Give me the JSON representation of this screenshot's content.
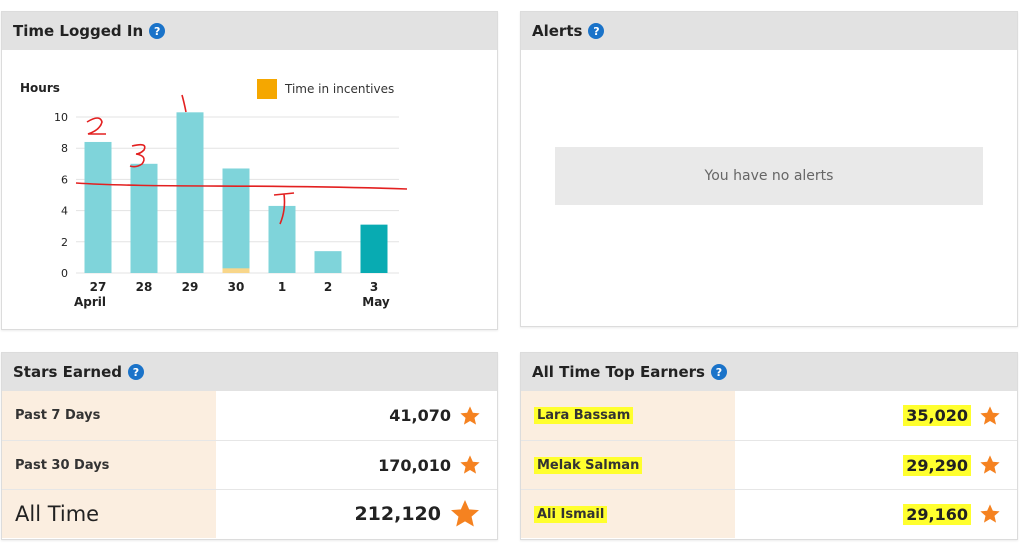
{
  "time_panel": {
    "title": "Time Logged In",
    "help": "?"
  },
  "alerts_panel": {
    "title": "Alerts",
    "help": "?",
    "empty_message": "You have no alerts"
  },
  "stars_panel": {
    "title": "Stars Earned",
    "help": "?",
    "rows": [
      {
        "label": "Past 7 Days",
        "value": "41,070"
      },
      {
        "label": "Past 30 Days",
        "value": "170,010"
      },
      {
        "label": "All Time",
        "value": "212,120"
      }
    ]
  },
  "top_panel": {
    "title": "All Time Top Earners",
    "help": "?",
    "rows": [
      {
        "label": "Lara Bassam",
        "value": "35,020"
      },
      {
        "label": "Melak Salman",
        "value": "29,290"
      },
      {
        "label": "Ali Ismail",
        "value": "29,160"
      }
    ]
  },
  "chart_data": {
    "type": "bar",
    "ylabel": "Hours",
    "legend": [
      {
        "name": "Time in incentives",
        "color": "#f5a700"
      }
    ],
    "legend_position": "top-right",
    "categories": [
      "27",
      "28",
      "29",
      "30",
      "1",
      "2",
      "3"
    ],
    "sub_labels": [
      "April",
      "",
      "",
      "",
      "",
      "",
      "May"
    ],
    "yticks": [
      0,
      2,
      4,
      6,
      8,
      10
    ],
    "ylim": [
      0,
      10.5
    ],
    "series": [
      {
        "values": [
          8.4,
          7.0,
          10.3,
          6.7,
          4.3,
          1.4,
          3.1
        ],
        "color": "#7fd4da",
        "last_color": "#08abb2"
      },
      {
        "name": "Time in incentives",
        "values": [
          0,
          0,
          0,
          0.3,
          0,
          0,
          0
        ],
        "color": "#f8d68a"
      }
    ],
    "grid": true,
    "annotations": [
      "2",
      "3",
      "1",
      "7"
    ]
  }
}
